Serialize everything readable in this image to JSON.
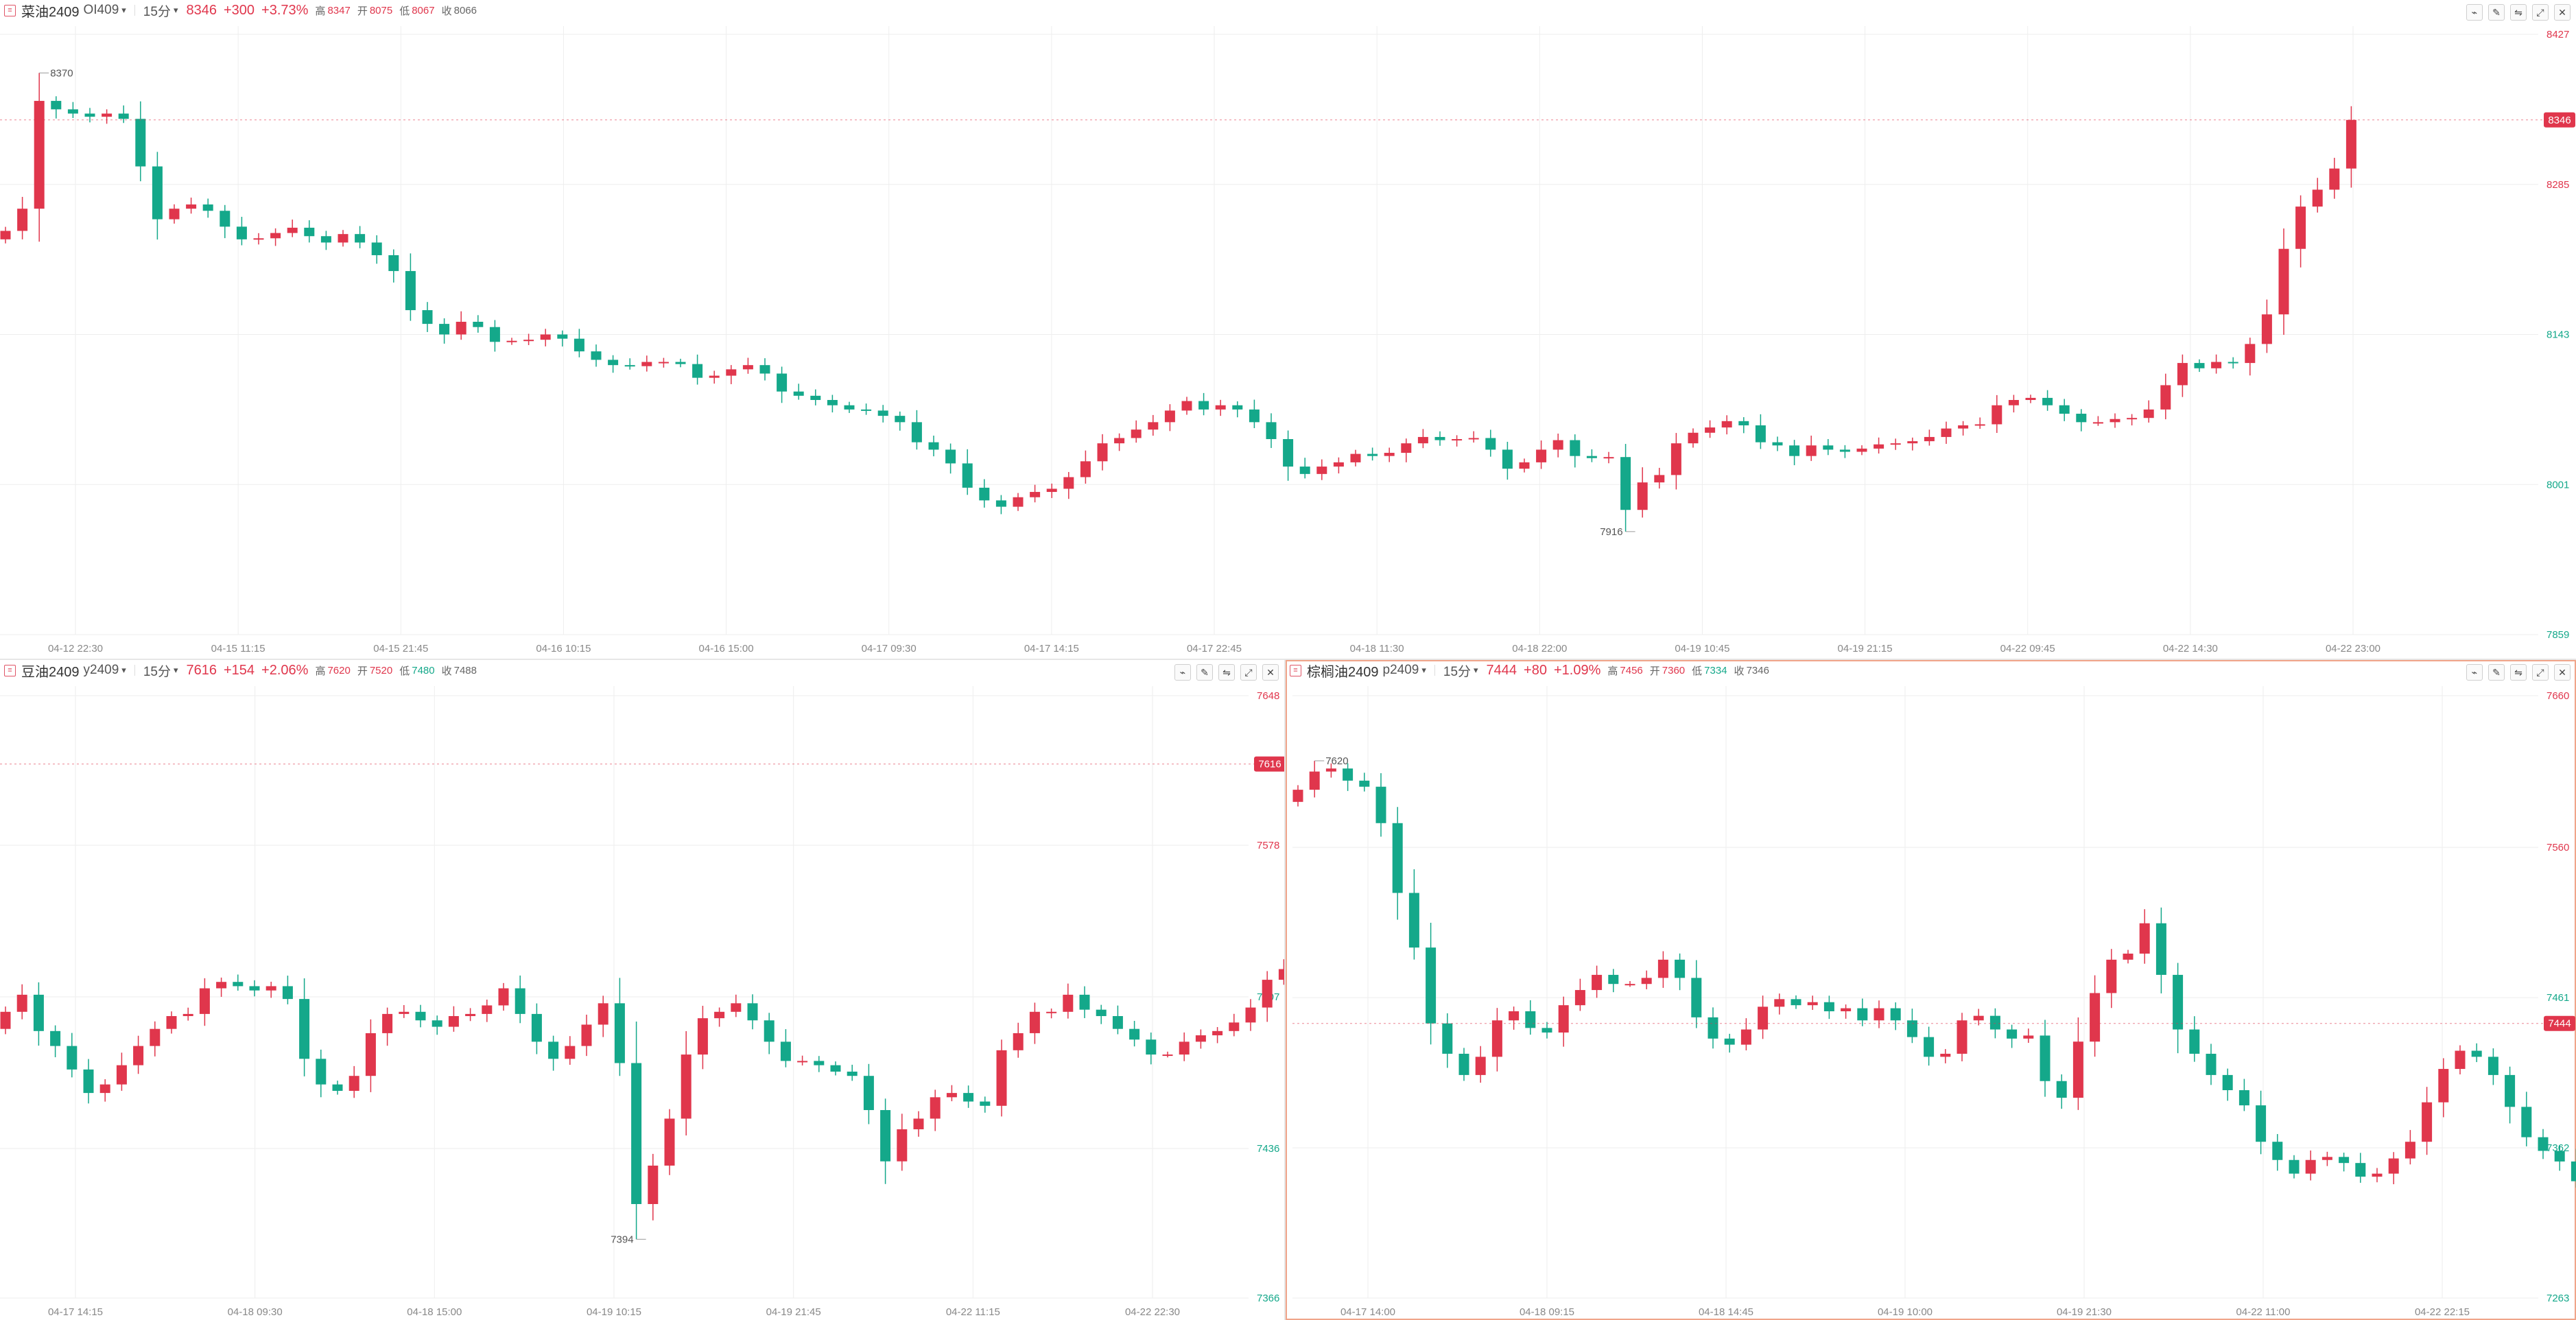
{
  "colors": {
    "up": "#e0364c",
    "down": "#14a88a",
    "grid": "#eeeeee",
    "border_active": "#f0a58a"
  },
  "panels": [
    {
      "id": "rapeseed",
      "header": {
        "name": "菜油2409",
        "code": "OI409",
        "period": "15分",
        "price": "8346",
        "change": "+300",
        "change_pct": "+3.73%",
        "high_label": "高",
        "high": "8347",
        "open_label": "开",
        "open": "8075",
        "low_label": "低",
        "low": "8067",
        "close_label": "收",
        "close": "8066"
      },
      "chart_data": {
        "type": "candlestick",
        "y_ticks": [
          "8427",
          "8285",
          "8143",
          "8001",
          "7859"
        ],
        "ylim": [
          7859,
          8427
        ],
        "x_ticks": [
          "04-12 22:30",
          "04-15 11:15",
          "04-15 21:45",
          "04-16 10:15",
          "04-16 15:00",
          "04-17 09:30",
          "04-17 14:15",
          "04-17 22:45",
          "04-18 11:30",
          "04-18 22:00",
          "04-19 10:45",
          "04-19 21:15",
          "04-22 09:45",
          "04-22 14:30",
          "04-22 23:00"
        ],
        "last_price": 8346,
        "annotations": {
          "high": "8370",
          "low": "7916"
        },
        "series_close": [
          8241,
          8262,
          8364,
          8356,
          8352,
          8349,
          8352,
          8347,
          8302,
          8252,
          8262,
          8266,
          8260,
          8245,
          8233,
          8234,
          8239,
          8244,
          8236,
          8230,
          8238,
          8230,
          8218,
          8203,
          8166,
          8153,
          8143,
          8155,
          8150,
          8136,
          8137,
          8138,
          8143,
          8139,
          8127,
          8119,
          8114,
          8113,
          8117,
          8117,
          8115,
          8102,
          8104,
          8110,
          8114,
          8106,
          8089,
          8085,
          8081,
          8076,
          8072,
          8071,
          8066,
          8060,
          8041,
          8034,
          8021,
          7998,
          7986,
          7980,
          7989,
          7994,
          7997,
          8008,
          8023,
          8040,
          8045,
          8053,
          8060,
          8071,
          8080,
          8072,
          8076,
          8072,
          8060,
          8044,
          8018,
          8011,
          8018,
          8022,
          8030,
          8028,
          8031,
          8040,
          8046,
          8043,
          8044,
          8045,
          8034,
          8016,
          8022,
          8034,
          8043,
          8028,
          8026,
          8027,
          7977,
          8003,
          8010,
          8040,
          8050,
          8055,
          8061,
          8057,
          8041,
          8038,
          8028,
          8038,
          8034,
          8032,
          8035,
          8039,
          8040,
          8042,
          8046,
          8054,
          8057,
          8058,
          8076,
          8081,
          8083,
          8076,
          8068,
          8060,
          8060,
          8063,
          8064,
          8072,
          8095,
          8116,
          8111,
          8117,
          8116,
          8134,
          8162,
          8224,
          8264,
          8280,
          8300,
          8346
        ]
      }
    },
    {
      "id": "soybean",
      "header": {
        "name": "豆油2409",
        "code": "y2409",
        "period": "15分",
        "price": "7616",
        "change": "+154",
        "change_pct": "+2.06%",
        "high_label": "高",
        "high": "7620",
        "open_label": "开",
        "open": "7520",
        "low_label": "低",
        "low": "7480",
        "close_label": "收",
        "close": "7488"
      },
      "chart_data": {
        "type": "candlestick",
        "y_ticks": [
          "7648",
          "7578",
          "7507",
          "7436",
          "7366"
        ],
        "ylim": [
          7366,
          7648
        ],
        "x_ticks": [
          "04-17 14:15",
          "04-18 09:30",
          "04-18 15:00",
          "04-19 10:15",
          "04-19 21:45",
          "04-22 11:15",
          "04-22 22:30"
        ],
        "last_price": 7616,
        "annotations": {
          "high": "7620",
          "low": "7394"
        },
        "series_close": [
          7500,
          7508,
          7491,
          7484,
          7473,
          7462,
          7466,
          7475,
          7484,
          7492,
          7498,
          7499,
          7511,
          7514,
          7512,
          7510,
          7512,
          7506,
          7478,
          7466,
          7463,
          7470,
          7490,
          7499,
          7500,
          7496,
          7493,
          7498,
          7499,
          7503,
          7511,
          7499,
          7486,
          7478,
          7484,
          7494,
          7504,
          7476,
          7410,
          7428,
          7450,
          7480,
          7497,
          7500,
          7504,
          7496,
          7486,
          7477,
          7477,
          7475,
          7472,
          7470,
          7454,
          7430,
          7445,
          7450,
          7460,
          7462,
          7458,
          7456,
          7482,
          7490,
          7500,
          7500,
          7508,
          7501,
          7498,
          7492,
          7487,
          7480,
          7480,
          7486,
          7489,
          7491,
          7495,
          7502,
          7515,
          7520,
          7528,
          7544,
          7573,
          7590,
          7609,
          7614,
          7616
        ]
      }
    },
    {
      "id": "palm",
      "header": {
        "name": "棕榈油2409",
        "code": "p2409",
        "period": "15分",
        "price": "7444",
        "change": "+80",
        "change_pct": "+1.09%",
        "high_label": "高",
        "high": "7456",
        "open_label": "开",
        "open": "7360",
        "low_label": "低",
        "low": "7334",
        "close_label": "收",
        "close": "7346"
      },
      "chart_data": {
        "type": "candlestick",
        "y_ticks": [
          "7660",
          "7560",
          "7461",
          "7362",
          "7263"
        ],
        "ylim": [
          7263,
          7660
        ],
        "x_ticks": [
          "04-17 14:00",
          "04-18 09:15",
          "04-18 14:45",
          "04-19 10:00",
          "04-19 21:30",
          "04-22 11:00",
          "04-22 22:15"
        ],
        "last_price": 7444,
        "annotations": {
          "high": "7620",
          "low": "7302"
        },
        "series_close": [
          7598,
          7610,
          7612,
          7604,
          7600,
          7576,
          7530,
          7494,
          7444,
          7424,
          7410,
          7422,
          7446,
          7452,
          7441,
          7438,
          7456,
          7466,
          7476,
          7470,
          7470,
          7474,
          7486,
          7474,
          7448,
          7434,
          7430,
          7440,
          7455,
          7460,
          7456,
          7458,
          7452,
          7454,
          7446,
          7454,
          7446,
          7435,
          7422,
          7424,
          7446,
          7449,
          7440,
          7434,
          7436,
          7406,
          7395,
          7432,
          7464,
          7486,
          7490,
          7510,
          7476,
          7440,
          7424,
          7410,
          7400,
          7390,
          7366,
          7354,
          7345,
          7354,
          7356,
          7352,
          7343,
          7345,
          7355,
          7366,
          7392,
          7414,
          7426,
          7422,
          7410,
          7389,
          7369,
          7360,
          7353,
          7340,
          7314,
          7306,
          7309,
          7312,
          7334,
          7349,
          7358,
          7370,
          7398,
          7420,
          7434,
          7444
        ]
      }
    }
  ]
}
